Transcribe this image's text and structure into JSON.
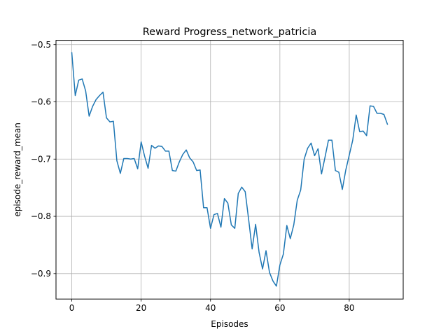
{
  "chart_data": {
    "type": "line",
    "title": "Reward Progress_network_patricia",
    "xlabel": "Episodes",
    "ylabel": "episode_reward_mean",
    "xlim": [
      -4.55,
      95.55
    ],
    "ylim": [
      -0.9445,
      -0.4925
    ],
    "xticks": [
      0,
      20,
      40,
      60,
      80
    ],
    "xtick_labels": [
      "0",
      "20",
      "40",
      "60",
      "80"
    ],
    "yticks": [
      -0.9,
      -0.8,
      -0.7,
      -0.6,
      -0.5
    ],
    "ytick_labels": [
      "−0.9",
      "−0.8",
      "−0.7",
      "−0.6",
      "−0.5"
    ],
    "grid": true,
    "series": [
      {
        "color": "#1f77b4",
        "x": [
          0,
          1,
          2,
          3,
          4,
          5,
          6,
          7,
          8,
          9,
          10,
          11,
          12,
          13,
          14,
          15,
          16,
          17,
          18,
          19,
          20,
          21,
          22,
          23,
          24,
          25,
          26,
          27,
          28,
          29,
          30,
          31,
          32,
          33,
          34,
          35,
          36,
          37,
          38,
          39,
          40,
          41,
          42,
          43,
          44,
          45,
          46,
          47,
          48,
          49,
          50,
          51,
          52,
          53,
          54,
          55,
          56,
          57,
          58,
          59,
          60,
          61,
          62,
          63,
          64,
          65,
          66,
          67,
          68,
          69,
          70,
          71,
          72,
          73,
          74,
          75,
          76,
          77,
          78,
          79,
          80,
          81,
          82,
          83,
          84,
          85,
          86,
          87,
          88,
          89,
          90,
          91
        ],
        "y": [
          -0.514,
          -0.589,
          -0.562,
          -0.56,
          -0.581,
          -0.625,
          -0.608,
          -0.596,
          -0.589,
          -0.583,
          -0.628,
          -0.635,
          -0.634,
          -0.703,
          -0.725,
          -0.699,
          -0.699,
          -0.7,
          -0.699,
          -0.717,
          -0.67,
          -0.695,
          -0.716,
          -0.676,
          -0.681,
          -0.677,
          -0.678,
          -0.686,
          -0.686,
          -0.72,
          -0.721,
          -0.705,
          -0.692,
          -0.684,
          -0.698,
          -0.705,
          -0.72,
          -0.719,
          -0.785,
          -0.785,
          -0.821,
          -0.797,
          -0.795,
          -0.819,
          -0.769,
          -0.777,
          -0.815,
          -0.821,
          -0.76,
          -0.749,
          -0.757,
          -0.806,
          -0.857,
          -0.814,
          -0.863,
          -0.892,
          -0.86,
          -0.898,
          -0.913,
          -0.922,
          -0.885,
          -0.866,
          -0.816,
          -0.839,
          -0.815,
          -0.772,
          -0.754,
          -0.7,
          -0.681,
          -0.672,
          -0.694,
          -0.682,
          -0.726,
          -0.697,
          -0.667,
          -0.667,
          -0.72,
          -0.723,
          -0.753,
          -0.719,
          -0.693,
          -0.667,
          -0.623,
          -0.652,
          -0.651,
          -0.659,
          -0.607,
          -0.608,
          -0.62,
          -0.62,
          -0.622,
          -0.639
        ]
      }
    ]
  }
}
